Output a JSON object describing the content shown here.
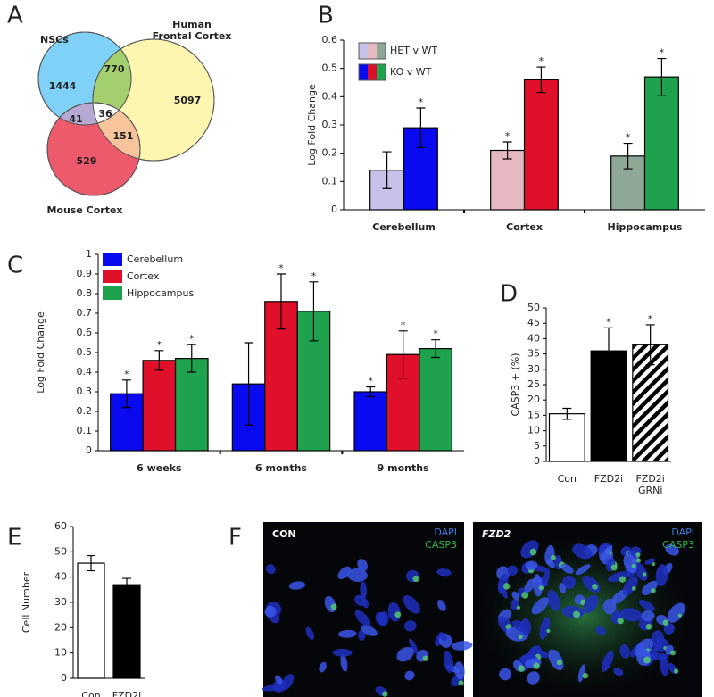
{
  "chart_data": [
    {
      "type": "venn",
      "panel": "A",
      "sets": [
        {
          "name": "NSCs",
          "color": "#7fd1f7"
        },
        {
          "name": "Human\nFrontal Cortex",
          "color": "#fdf6b0"
        },
        {
          "name": "Mouse Cortex",
          "color": "#ec5a6c"
        }
      ],
      "regions": [
        {
          "sets": "NSCs",
          "value": 1444
        },
        {
          "sets": "NSCs & Human",
          "value": 770
        },
        {
          "sets": "Human",
          "value": 5097
        },
        {
          "sets": "NSCs & Mouse",
          "value": 41
        },
        {
          "sets": "All",
          "value": 36
        },
        {
          "sets": "Human & Mouse",
          "value": 151
        },
        {
          "sets": "Mouse",
          "value": 529
        }
      ]
    },
    {
      "type": "bar",
      "panel": "B",
      "ylabel": "Log Fold Change",
      "categories": [
        "Cerebellum",
        "Cortex",
        "Hippocampus"
      ],
      "series": [
        {
          "name": "HET v WT",
          "colors": [
            "#c8c2ea",
            "#e6b8c2",
            "#8fa797"
          ],
          "values": [
            0.14,
            0.21,
            0.19
          ],
          "errors": [
            0.065,
            0.03,
            0.045
          ],
          "significant": [
            false,
            true,
            true
          ]
        },
        {
          "name": "KO v WT",
          "colors": [
            "#0a0af0",
            "#e0102a",
            "#1fa24e"
          ],
          "values": [
            0.29,
            0.46,
            0.47
          ],
          "errors": [
            0.07,
            0.045,
            0.065
          ],
          "significant": [
            true,
            true,
            true
          ]
        }
      ],
      "significance_mark": "*",
      "ylim": [
        0,
        0.6
      ],
      "yticks": [
        0,
        0.1,
        0.2,
        0.3,
        0.4,
        0.5,
        0.6
      ]
    },
    {
      "type": "bar",
      "panel": "C",
      "ylabel": "Log Fold Change",
      "categories": [
        "6 weeks",
        "6 months",
        "9 months"
      ],
      "series": [
        {
          "name": "Cerebellum",
          "color": "#0a0af0",
          "values": [
            0.29,
            0.34,
            0.3
          ],
          "errors": [
            0.07,
            0.21,
            0.025
          ],
          "significant": [
            true,
            false,
            true
          ]
        },
        {
          "name": "Cortex",
          "color": "#e0102a",
          "values": [
            0.46,
            0.76,
            0.49
          ],
          "errors": [
            0.05,
            0.14,
            0.12
          ],
          "significant": [
            true,
            true,
            true
          ]
        },
        {
          "name": "Hippocampus",
          "color": "#1fa24e",
          "values": [
            0.47,
            0.71,
            0.52
          ],
          "errors": [
            0.07,
            0.15,
            0.045
          ],
          "significant": [
            true,
            true,
            true
          ]
        }
      ],
      "significance_mark": "*",
      "ylim": [
        0,
        1
      ],
      "yticks": [
        0,
        0.1,
        0.2,
        0.3,
        0.4,
        0.5,
        0.6,
        0.7,
        0.8,
        0.9,
        1
      ]
    },
    {
      "type": "bar",
      "panel": "D",
      "ylabel": "CASP3 + (%)",
      "categories": [
        "Con",
        "FZD2i",
        "FZD2i\nGRNi"
      ],
      "values": [
        15.5,
        36,
        38
      ],
      "errors": [
        1.8,
        7.5,
        6.5
      ],
      "colors": [
        "#ffffff",
        "#000000",
        "#ffffff"
      ],
      "hatched": [
        false,
        false,
        true
      ],
      "significant": [
        false,
        true,
        true
      ],
      "significance_mark": "*",
      "ylim": [
        0,
        50
      ],
      "yticks": [
        0,
        5,
        10,
        15,
        20,
        25,
        30,
        35,
        40,
        45,
        50
      ]
    },
    {
      "type": "bar",
      "panel": "E",
      "ylabel": "Cell Number",
      "categories": [
        "Con",
        "FZD2i"
      ],
      "values": [
        45.5,
        37
      ],
      "errors": [
        3,
        2.5
      ],
      "colors": [
        "#ffffff",
        "#000000"
      ],
      "ylim": [
        0,
        60
      ],
      "yticks": [
        0,
        10,
        20,
        30,
        40,
        50,
        60
      ]
    }
  ],
  "figure_f": {
    "panel": "F",
    "images": [
      {
        "title": "CON",
        "channels": [
          {
            "name": "DAPI",
            "color": "#3b7fe0"
          },
          {
            "name": "CASP3",
            "color": "#2fb84a"
          }
        ]
      },
      {
        "title": "FZD2",
        "channels": [
          {
            "name": "DAPI",
            "color": "#3b7fe0"
          },
          {
            "name": "CASP3",
            "color": "#2fb84a"
          }
        ]
      }
    ]
  }
}
